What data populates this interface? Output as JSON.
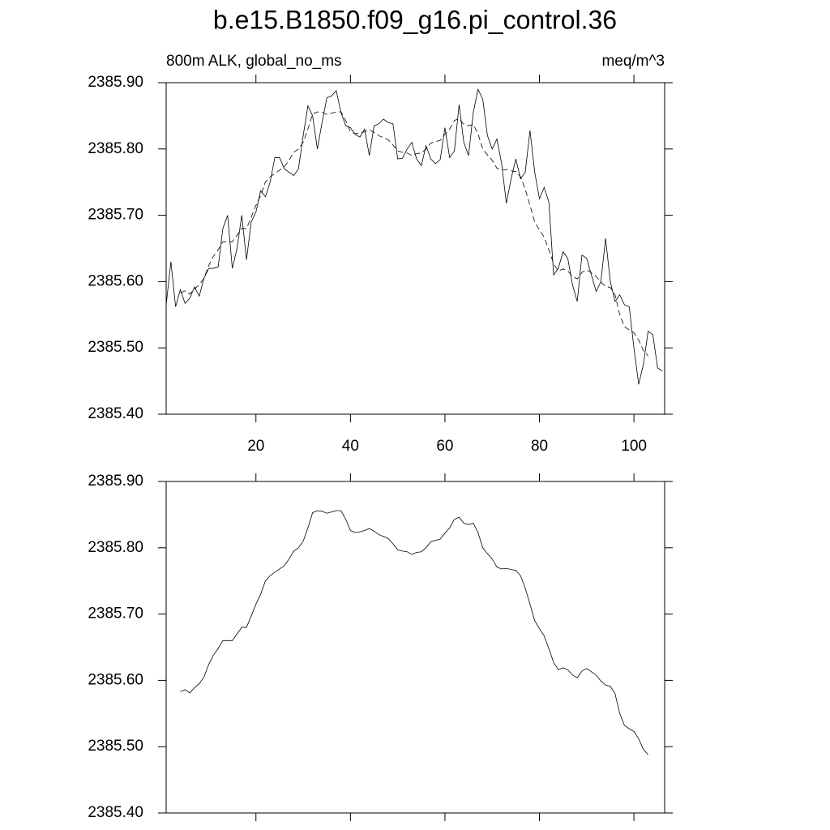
{
  "title": "b.e15.B1850.f09_g16.pi_control.36",
  "chart_data": [
    {
      "type": "line",
      "subtitle_left": "800m ALK, global_no_ms",
      "subtitle_right": "meq/m^3",
      "x": [
        1,
        2,
        3,
        4,
        5,
        6,
        7,
        8,
        9,
        10,
        11,
        12,
        13,
        14,
        15,
        16,
        17,
        18,
        19,
        20,
        21,
        22,
        23,
        24,
        25,
        26,
        27,
        28,
        29,
        30,
        31,
        32,
        33,
        34,
        35,
        36,
        37,
        38,
        39,
        40,
        41,
        42,
        43,
        44,
        45,
        46,
        47,
        48,
        49,
        50,
        51,
        52,
        53,
        54,
        55,
        56,
        57,
        58,
        59,
        60,
        61,
        62,
        63,
        64,
        65,
        66,
        67,
        68,
        69,
        70,
        71,
        72,
        73,
        74,
        75,
        76,
        77,
        78,
        79,
        80,
        81,
        82,
        83,
        84,
        85,
        86,
        87,
        88,
        89,
        90,
        91,
        92,
        93,
        94,
        95,
        96,
        97,
        98,
        99,
        100,
        101,
        102,
        103,
        104,
        105,
        106
      ],
      "series": [
        {
          "color": "#000000",
          "line_style": "solid",
          "values": [
            2385.565,
            2385.63,
            2385.562,
            2385.588,
            2385.567,
            2385.575,
            2385.592,
            2385.578,
            2385.605,
            2385.62,
            2385.62,
            2385.622,
            2385.68,
            2385.7,
            2385.62,
            2385.65,
            2385.7,
            2385.633,
            2385.69,
            2385.705,
            2385.737,
            2385.728,
            2385.75,
            2385.787,
            2385.787,
            2385.77,
            2385.765,
            2385.76,
            2385.77,
            2385.82,
            2385.865,
            2385.85,
            2385.8,
            2385.84,
            2385.877,
            2385.88,
            2385.888,
            2385.855,
            2385.835,
            2385.832,
            2385.822,
            2385.818,
            2385.83,
            2385.79,
            2385.835,
            2385.838,
            2385.845,
            2385.84,
            2385.838,
            2385.785,
            2385.786,
            2385.8,
            2385.81,
            2385.785,
            2385.775,
            2385.805,
            2385.785,
            2385.778,
            2385.784,
            2385.832,
            2385.787,
            2385.797,
            2385.867,
            2385.81,
            2385.79,
            2385.855,
            2385.89,
            2385.875,
            2385.82,
            2385.8,
            2385.815,
            2385.778,
            2385.718,
            2385.755,
            2385.785,
            2385.755,
            2385.765,
            2385.828,
            2385.765,
            2385.725,
            2385.742,
            2385.72,
            2385.61,
            2385.62,
            2385.645,
            2385.635,
            2385.595,
            2385.57,
            2385.64,
            2385.635,
            2385.61,
            2385.585,
            2385.6,
            2385.665,
            2385.6,
            2385.57,
            2385.58,
            2385.565,
            2385.562,
            2385.5,
            2385.445,
            2385.475,
            2385.525,
            2385.52,
            2385.47,
            2385.465
          ]
        },
        {
          "color": "#000000",
          "line_style": "dashed",
          "values": [
            null,
            null,
            null,
            2385.583,
            2385.586,
            2385.581,
            2385.589,
            2385.595,
            2385.605,
            2385.624,
            2385.638,
            2385.648,
            2385.66,
            2385.66,
            2385.66,
            2385.67,
            2385.68,
            2385.68,
            2385.697,
            2385.715,
            2385.73,
            2385.75,
            2385.758,
            2385.763,
            2385.768,
            2385.773,
            2385.783,
            2385.795,
            2385.8,
            2385.81,
            2385.83,
            2385.853,
            2385.856,
            2385.855,
            2385.852,
            2385.854,
            2385.856,
            2385.856,
            2385.843,
            2385.826,
            2385.823,
            2385.824,
            2385.826,
            2385.829,
            2385.825,
            2385.82,
            2385.817,
            2385.814,
            2385.806,
            2385.797,
            2385.795,
            2385.794,
            2385.79,
            2385.793,
            2385.794,
            2385.8,
            2385.809,
            2385.811,
            2385.813,
            2385.822,
            2385.83,
            2385.843,
            2385.846,
            2385.837,
            2385.835,
            2385.837,
            2385.823,
            2385.8,
            2385.791,
            2385.783,
            2385.771,
            2385.768,
            2385.769,
            2385.767,
            2385.766,
            2385.758,
            2385.739,
            2385.715,
            2385.69,
            2385.678,
            2385.667,
            2385.648,
            2385.627,
            2385.616,
            2385.619,
            2385.616,
            2385.608,
            2385.604,
            2385.614,
            2385.618,
            2385.613,
            2385.608,
            2385.599,
            2385.593,
            2385.591,
            2385.58,
            2385.55,
            2385.532,
            2385.527,
            2385.523,
            2385.512,
            2385.496,
            2385.488,
            null,
            null,
            null
          ]
        }
      ],
      "xlim": [
        1,
        106.5
      ],
      "xticks": [
        20,
        40,
        60,
        80,
        100
      ],
      "ylim": [
        2385.4,
        2385.9
      ],
      "yticks": [
        {
          "value": 2385.4,
          "label": "2385.40"
        },
        {
          "value": 2385.5,
          "label": "2385.50"
        },
        {
          "value": 2385.6,
          "label": "2385.60"
        },
        {
          "value": 2385.7,
          "label": "2385.70"
        },
        {
          "value": 2385.8,
          "label": "2385.80"
        },
        {
          "value": 2385.9,
          "label": "2385.90"
        }
      ],
      "x_tick_labels": true
    },
    {
      "type": "line",
      "x": [
        1,
        2,
        3,
        4,
        5,
        6,
        7,
        8,
        9,
        10,
        11,
        12,
        13,
        14,
        15,
        16,
        17,
        18,
        19,
        20,
        21,
        22,
        23,
        24,
        25,
        26,
        27,
        28,
        29,
        30,
        31,
        32,
        33,
        34,
        35,
        36,
        37,
        38,
        39,
        40,
        41,
        42,
        43,
        44,
        45,
        46,
        47,
        48,
        49,
        50,
        51,
        52,
        53,
        54,
        55,
        56,
        57,
        58,
        59,
        60,
        61,
        62,
        63,
        64,
        65,
        66,
        67,
        68,
        69,
        70,
        71,
        72,
        73,
        74,
        75,
        76,
        77,
        78,
        79,
        80,
        81,
        82,
        83,
        84,
        85,
        86,
        87,
        88,
        89,
        90,
        91,
        92,
        93,
        94,
        95,
        96,
        97,
        98,
        99,
        100,
        101,
        102,
        103,
        104,
        105,
        106
      ],
      "series": [
        {
          "color": "#000000",
          "line_style": "solid",
          "values": [
            null,
            null,
            null,
            2385.583,
            2385.586,
            2385.581,
            2385.589,
            2385.595,
            2385.605,
            2385.624,
            2385.638,
            2385.648,
            2385.66,
            2385.66,
            2385.66,
            2385.67,
            2385.68,
            2385.68,
            2385.697,
            2385.715,
            2385.73,
            2385.75,
            2385.758,
            2385.763,
            2385.768,
            2385.773,
            2385.783,
            2385.795,
            2385.8,
            2385.81,
            2385.83,
            2385.853,
            2385.856,
            2385.855,
            2385.852,
            2385.854,
            2385.856,
            2385.856,
            2385.843,
            2385.826,
            2385.823,
            2385.824,
            2385.826,
            2385.829,
            2385.825,
            2385.82,
            2385.817,
            2385.814,
            2385.806,
            2385.797,
            2385.795,
            2385.794,
            2385.79,
            2385.793,
            2385.794,
            2385.8,
            2385.809,
            2385.811,
            2385.813,
            2385.822,
            2385.83,
            2385.843,
            2385.846,
            2385.837,
            2385.835,
            2385.837,
            2385.823,
            2385.8,
            2385.791,
            2385.783,
            2385.771,
            2385.768,
            2385.769,
            2385.767,
            2385.766,
            2385.758,
            2385.739,
            2385.715,
            2385.69,
            2385.678,
            2385.667,
            2385.648,
            2385.627,
            2385.616,
            2385.619,
            2385.616,
            2385.608,
            2385.604,
            2385.614,
            2385.618,
            2385.613,
            2385.608,
            2385.599,
            2385.593,
            2385.591,
            2385.58,
            2385.55,
            2385.532,
            2385.527,
            2385.523,
            2385.512,
            2385.496,
            2385.488,
            null,
            null,
            null
          ]
        }
      ],
      "xlim": [
        1,
        106.5
      ],
      "xticks": [
        20,
        40,
        60,
        80,
        100
      ],
      "ylim": [
        2385.4,
        2385.9
      ],
      "yticks": [
        {
          "value": 2385.4,
          "label": "2385.40"
        },
        {
          "value": 2385.5,
          "label": "2385.50"
        },
        {
          "value": 2385.6,
          "label": "2385.60"
        },
        {
          "value": 2385.7,
          "label": "2385.70"
        },
        {
          "value": 2385.8,
          "label": "2385.80"
        },
        {
          "value": 2385.9,
          "label": "2385.90"
        }
      ],
      "x_tick_labels": false
    }
  ]
}
